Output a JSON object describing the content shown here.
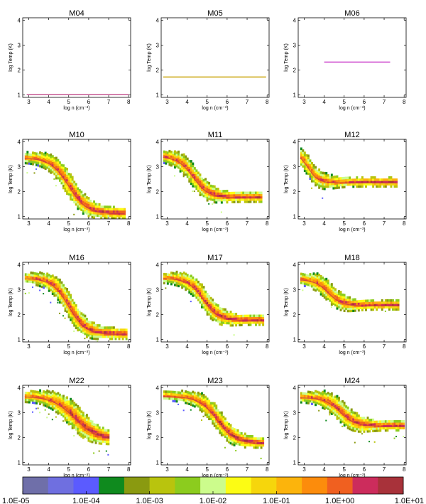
{
  "chart_data": {
    "type": "heatmap",
    "description_axes": {
      "xlabel": "log n (cm⁻³)",
      "ylabel": "log Temp (K)",
      "xlim": [
        2.7,
        8.1
      ],
      "ylim": [
        0.9,
        4.1
      ],
      "xticks": [
        "3",
        "4",
        "5",
        "6",
        "7",
        "8"
      ],
      "yticks": [
        "1",
        "2",
        "3",
        "4"
      ]
    },
    "panels": [
      {
        "title": "M04",
        "kind": "flat",
        "flat": {
          "x0": 2.9,
          "x1": 8.0,
          "y": 1.02,
          "color": "#c24f8c"
        }
      },
      {
        "title": "M05",
        "kind": "flat",
        "flat": {
          "x0": 2.8,
          "x1": 7.95,
          "y": 1.72,
          "color": "#c8a000"
        }
      },
      {
        "title": "M06",
        "kind": "flat",
        "flat": {
          "x0": 4.0,
          "x1": 7.3,
          "y": 2.32,
          "color": "#cc44cc"
        }
      },
      {
        "title": "M10",
        "kind": "band",
        "hi": 3.35,
        "lo": 1.1,
        "xm": 5.0,
        "k": 2.2,
        "w": 0.45,
        "x0": 2.8,
        "x1": 7.8,
        "drop": 0.0,
        "scatter": 0.25
      },
      {
        "title": "M11",
        "kind": "band",
        "hi": 3.4,
        "lo": 1.75,
        "xm": 4.3,
        "k": 2.6,
        "w": 0.4,
        "x0": 2.8,
        "x1": 7.7,
        "drop": 0.0,
        "scatter": 0.1
      },
      {
        "title": "M12",
        "kind": "band",
        "hi": 3.55,
        "lo": 2.35,
        "xm": 3.2,
        "k": 4.0,
        "w": 0.35,
        "x0": 2.8,
        "x1": 7.6,
        "drop": 0.0,
        "scatter": 0.05
      },
      {
        "title": "M16",
        "kind": "band",
        "hi": 3.45,
        "lo": 1.2,
        "xm": 5.0,
        "k": 2.4,
        "w": 0.45,
        "x0": 2.8,
        "x1": 7.9,
        "drop": 0.0,
        "scatter": 0.3
      },
      {
        "title": "M17",
        "kind": "band",
        "hi": 3.45,
        "lo": 1.75,
        "xm": 4.8,
        "k": 2.6,
        "w": 0.4,
        "x0": 2.8,
        "x1": 7.8,
        "drop": 0.0,
        "scatter": 0.1
      },
      {
        "title": "M18",
        "kind": "band",
        "hi": 3.4,
        "lo": 2.35,
        "xm": 4.2,
        "k": 3.0,
        "w": 0.35,
        "x0": 2.8,
        "x1": 7.7,
        "drop": 0.0,
        "scatter": 0.08
      },
      {
        "title": "M22",
        "kind": "band",
        "hi": 3.65,
        "lo": 1.9,
        "xm": 5.3,
        "k": 1.8,
        "w": 0.5,
        "x0": 2.8,
        "x1": 7.0,
        "drop": 0.0,
        "scatter": 0.35
      },
      {
        "title": "M23",
        "kind": "band",
        "hi": 3.65,
        "lo": 1.75,
        "xm": 5.5,
        "k": 2.2,
        "w": 0.4,
        "x0": 2.8,
        "x1": 7.8,
        "drop": 0.0,
        "scatter": 0.1
      },
      {
        "title": "M24",
        "kind": "band",
        "hi": 3.6,
        "lo": 2.45,
        "xm": 4.8,
        "k": 2.6,
        "w": 0.4,
        "x0": 2.8,
        "x1": 8.0,
        "drop": 0.0,
        "scatter": 0.15
      }
    ],
    "colorbar": {
      "scale": "log",
      "colors": [
        "#6f6fa9",
        "#6f6fe0",
        "#5b5bff",
        "#0f8a1e",
        "#8a9a10",
        "#b9c40d",
        "#8ccc1e",
        "#ccfc8c",
        "#fcfc14",
        "#f6d60c",
        "#fcb40c",
        "#fc8c0c",
        "#f06020",
        "#cc2c5c",
        "#a8323a"
      ],
      "labels": [
        "1.0E-05",
        "1.0E-04",
        "1.0E-03",
        "1.0E-02",
        "1.0E-01",
        "1.0E+00",
        "1.0E+01"
      ]
    }
  }
}
